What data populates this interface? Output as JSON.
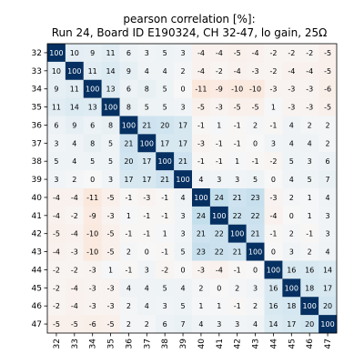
{
  "chart_data": {
    "type": "heatmap",
    "title": "pearson correlation [%]:",
    "subtitle": "Run 24, Board ID E190324, CH 32-47, lo gain, 25Ω",
    "xlabel": "",
    "ylabel": "",
    "x_categories": [
      "32",
      "33",
      "34",
      "35",
      "36",
      "37",
      "38",
      "39",
      "40",
      "41",
      "42",
      "43",
      "44",
      "45",
      "46",
      "47"
    ],
    "y_categories": [
      "32",
      "33",
      "34",
      "35",
      "36",
      "37",
      "38",
      "39",
      "40",
      "41",
      "42",
      "43",
      "44",
      "45",
      "46",
      "47"
    ],
    "vrange": [
      -100,
      100
    ],
    "colormap": "RdBu (red = negative, blue = positive)",
    "values": [
      [
        100,
        10,
        9,
        11,
        6,
        3,
        5,
        3,
        -4,
        -4,
        -5,
        -4,
        -2,
        -2,
        -2,
        -5
      ],
      [
        10,
        100,
        11,
        14,
        9,
        4,
        4,
        2,
        -4,
        -2,
        -4,
        -3,
        -2,
        -4,
        -4,
        -5
      ],
      [
        9,
        11,
        100,
        13,
        6,
        8,
        5,
        0,
        -11,
        -9,
        -10,
        -10,
        -3,
        -3,
        -3,
        -6
      ],
      [
        11,
        14,
        13,
        100,
        8,
        5,
        5,
        3,
        -5,
        -3,
        -5,
        -5,
        1,
        -3,
        -3,
        -5
      ],
      [
        6,
        9,
        6,
        8,
        100,
        21,
        20,
        17,
        -1,
        1,
        -1,
        2,
        -1,
        4,
        2,
        2
      ],
      [
        3,
        4,
        8,
        5,
        21,
        100,
        17,
        17,
        -3,
        -1,
        -1,
        0,
        3,
        4,
        4,
        2
      ],
      [
        5,
        4,
        5,
        5,
        20,
        17,
        100,
        21,
        -1,
        -1,
        1,
        -1,
        -2,
        5,
        3,
        6
      ],
      [
        3,
        2,
        0,
        3,
        17,
        17,
        21,
        100,
        4,
        3,
        3,
        5,
        0,
        4,
        5,
        7
      ],
      [
        -4,
        -4,
        -11,
        -5,
        -1,
        -3,
        -1,
        4,
        100,
        24,
        21,
        23,
        -3,
        2,
        1,
        4
      ],
      [
        -4,
        -2,
        -9,
        -3,
        1,
        -1,
        -1,
        3,
        24,
        100,
        22,
        22,
        -4,
        0,
        1,
        3
      ],
      [
        -5,
        -4,
        -10,
        -5,
        -1,
        -1,
        1,
        3,
        21,
        22,
        100,
        21,
        -1,
        2,
        -1,
        3
      ],
      [
        -4,
        -3,
        -10,
        -5,
        2,
        0,
        -1,
        5,
        23,
        22,
        21,
        100,
        0,
        3,
        2,
        4
      ],
      [
        -2,
        -2,
        -3,
        1,
        -1,
        3,
        -2,
        0,
        -3,
        -4,
        -1,
        0,
        100,
        16,
        16,
        14
      ],
      [
        -2,
        -4,
        -3,
        -3,
        4,
        4,
        5,
        4,
        2,
        0,
        2,
        3,
        16,
        100,
        18,
        17
      ],
      [
        -2,
        -4,
        -3,
        -3,
        2,
        4,
        3,
        5,
        1,
        1,
        -1,
        2,
        16,
        18,
        100,
        20
      ],
      [
        -5,
        -5,
        -6,
        -5,
        2,
        2,
        6,
        7,
        4,
        3,
        3,
        4,
        14,
        17,
        20,
        100
      ]
    ]
  }
}
